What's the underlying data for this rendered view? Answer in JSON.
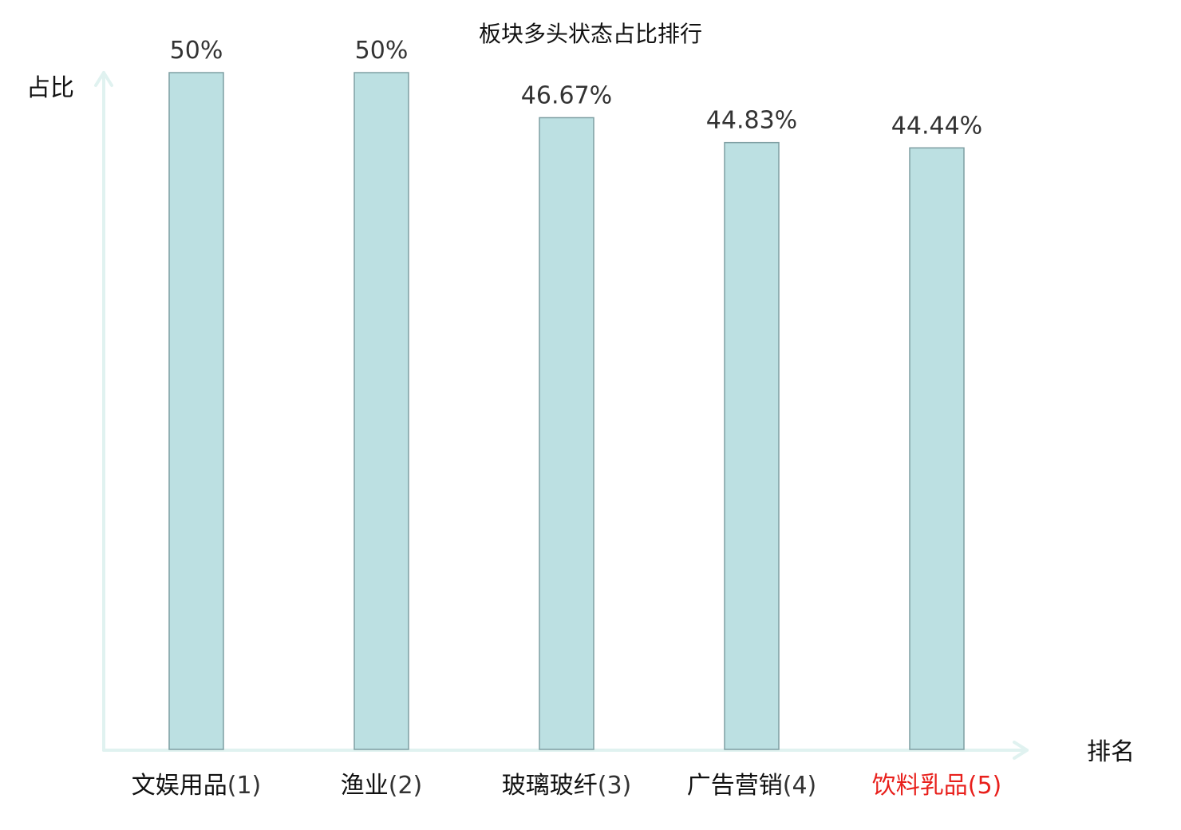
{
  "chart_data": {
    "type": "bar",
    "title": "板块多头状态占比排行",
    "ylabel": "占比",
    "xlabel": "排名",
    "categories": [
      "文娱用品",
      "渔业",
      "玻璃玻纤",
      "广告营销",
      "饮料乳品"
    ],
    "ranks": [
      "(1)",
      "(2)",
      "(3)",
      "(4)",
      "(5)"
    ],
    "values": [
      50,
      50,
      46.67,
      44.83,
      44.44
    ],
    "value_labels": [
      "50%",
      "50%",
      "46.67%",
      "44.83%",
      "44.44%"
    ],
    "highlight_index": 4,
    "ylim": [
      0,
      50
    ],
    "grid": false,
    "colors": {
      "bar_fill": "#bce0e2",
      "bar_stroke": "#7f9fa3",
      "axis": "#e0f2f0",
      "text": "#111111",
      "value_text": "#333333",
      "highlight": "#e8201c",
      "rank_text": "#333333"
    }
  }
}
